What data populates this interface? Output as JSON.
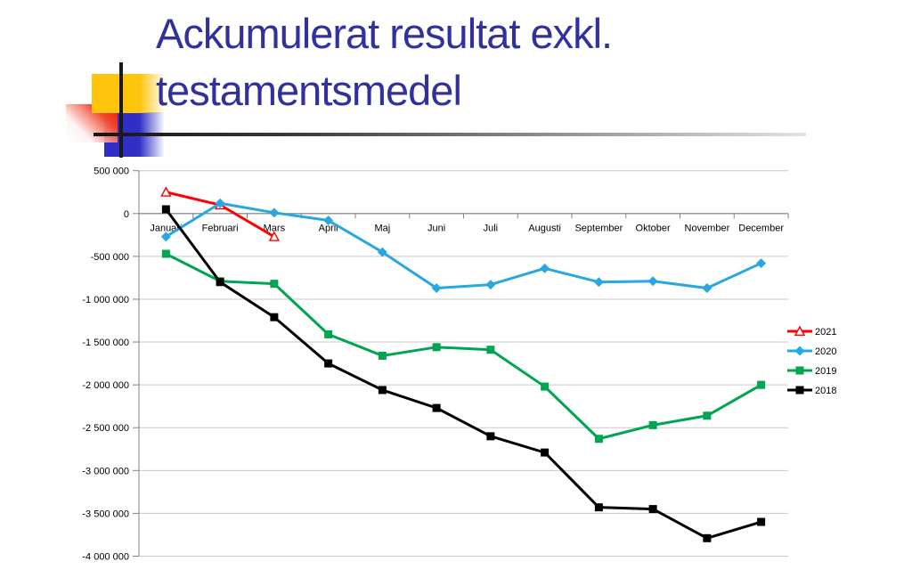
{
  "slide": {
    "title_line1": "Ackumulerat resultat exkl.",
    "title_line2": "testamentsmedel",
    "title_color": "#31319E",
    "decoration_colors": {
      "yellow": "#FFC40C",
      "blue": "#2F2FC8",
      "red": "#EE1111"
    }
  },
  "chart_data": {
    "type": "line",
    "title": "",
    "xlabel": "",
    "ylabel": "",
    "categories": [
      "Januari",
      "Februari",
      "Mars",
      "April",
      "Maj",
      "Juni",
      "Juli",
      "Augusti",
      "September",
      "Oktober",
      "November",
      "December"
    ],
    "series": [
      {
        "name": "2021",
        "color": "#FF0000",
        "marker": "triangle-open",
        "values": [
          250000,
          100000,
          -270000,
          null,
          null,
          null,
          null,
          null,
          null,
          null,
          null,
          null
        ]
      },
      {
        "name": "2020",
        "color": "#29A8E0",
        "marker": "diamond",
        "values": [
          -270000,
          120000,
          10000,
          -80000,
          -450000,
          -870000,
          -830000,
          -640000,
          -800000,
          -790000,
          -870000,
          -580000
        ]
      },
      {
        "name": "2019",
        "color": "#00A551",
        "marker": "square",
        "values": [
          -470000,
          -790000,
          -820000,
          -1410000,
          -1660000,
          -1560000,
          -1590000,
          -2020000,
          -2630000,
          -2470000,
          -2360000,
          -2000000
        ]
      },
      {
        "name": "2018",
        "color": "#000000",
        "marker": "square",
        "values": [
          50000,
          -800000,
          -1210000,
          -1750000,
          -2060000,
          -2270000,
          -2600000,
          -2790000,
          -3430000,
          -3450000,
          -3790000,
          -3600000
        ]
      }
    ],
    "ylim": [
      -4000000,
      500000
    ],
    "yticks": [
      {
        "value": 500000,
        "label": "500 000"
      },
      {
        "value": 0,
        "label": "0"
      },
      {
        "value": -500000,
        "label": "-500 000"
      },
      {
        "value": -1000000,
        "label": "-1 000 000"
      },
      {
        "value": -1500000,
        "label": "-1 500 000"
      },
      {
        "value": -2000000,
        "label": "-2 000 000"
      },
      {
        "value": -2500000,
        "label": "-2 500 000"
      },
      {
        "value": -3000000,
        "label": "-3 000 000"
      },
      {
        "value": -3500000,
        "label": "-3 500 000"
      },
      {
        "value": -4000000,
        "label": "-4 000 000"
      }
    ],
    "grid": true,
    "legend_position": "right",
    "legend_labels": [
      "2021",
      "2020",
      "2019",
      "2018"
    ]
  }
}
